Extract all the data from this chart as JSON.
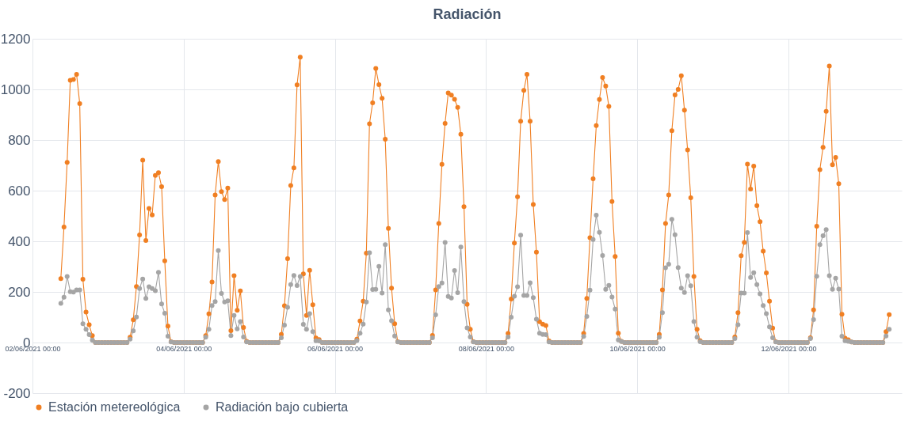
{
  "chart_data": {
    "type": "line",
    "title": "Radiación",
    "x": [
      "2021-06-02T09:00",
      "2021-06-02T10:00",
      "2021-06-02T11:00",
      "2021-06-02T12:00",
      "2021-06-02T13:00",
      "2021-06-02T14:00",
      "2021-06-02T15:00",
      "2021-06-02T16:00",
      "2021-06-02T17:00",
      "2021-06-02T18:00",
      "2021-06-02T19:00",
      "2021-06-02T20:00",
      "2021-06-02T21:00",
      "2021-06-02T22:00",
      "2021-06-02T23:00",
      "2021-06-03T00:00",
      "2021-06-03T01:00",
      "2021-06-03T02:00",
      "2021-06-03T03:00",
      "2021-06-03T04:00",
      "2021-06-03T05:00",
      "2021-06-03T06:00",
      "2021-06-03T07:00",
      "2021-06-03T08:00",
      "2021-06-03T09:00",
      "2021-06-03T10:00",
      "2021-06-03T11:00",
      "2021-06-03T12:00",
      "2021-06-03T13:00",
      "2021-06-03T14:00",
      "2021-06-03T15:00",
      "2021-06-03T16:00",
      "2021-06-03T17:00",
      "2021-06-03T18:00",
      "2021-06-03T19:00",
      "2021-06-03T20:00",
      "2021-06-03T21:00",
      "2021-06-03T22:00",
      "2021-06-03T23:00",
      "2021-06-04T00:00",
      "2021-06-04T01:00",
      "2021-06-04T02:00",
      "2021-06-04T03:00",
      "2021-06-04T04:00",
      "2021-06-04T05:00",
      "2021-06-04T06:00",
      "2021-06-04T07:00",
      "2021-06-04T08:00",
      "2021-06-04T09:00",
      "2021-06-04T10:00",
      "2021-06-04T11:00",
      "2021-06-04T12:00",
      "2021-06-04T13:00",
      "2021-06-04T14:00",
      "2021-06-04T15:00",
      "2021-06-04T16:00",
      "2021-06-04T17:00",
      "2021-06-04T18:00",
      "2021-06-04T19:00",
      "2021-06-04T20:00",
      "2021-06-04T21:00",
      "2021-06-04T22:00",
      "2021-06-04T23:00",
      "2021-06-05T00:00",
      "2021-06-05T01:00",
      "2021-06-05T02:00",
      "2021-06-05T03:00",
      "2021-06-05T04:00",
      "2021-06-05T05:00",
      "2021-06-05T06:00",
      "2021-06-05T07:00",
      "2021-06-05T08:00",
      "2021-06-05T09:00",
      "2021-06-05T10:00",
      "2021-06-05T11:00",
      "2021-06-05T12:00",
      "2021-06-05T13:00",
      "2021-06-05T14:00",
      "2021-06-05T15:00",
      "2021-06-05T16:00",
      "2021-06-05T17:00",
      "2021-06-05T18:00",
      "2021-06-05T19:00",
      "2021-06-05T20:00",
      "2021-06-05T21:00",
      "2021-06-05T22:00",
      "2021-06-05T23:00",
      "2021-06-06T00:00",
      "2021-06-06T01:00",
      "2021-06-06T02:00",
      "2021-06-06T03:00",
      "2021-06-06T04:00",
      "2021-06-06T05:00",
      "2021-06-06T06:00",
      "2021-06-06T07:00",
      "2021-06-06T08:00",
      "2021-06-06T09:00",
      "2021-06-06T10:00",
      "2021-06-06T11:00",
      "2021-06-06T12:00",
      "2021-06-06T13:00",
      "2021-06-06T14:00",
      "2021-06-06T15:00",
      "2021-06-06T16:00",
      "2021-06-06T17:00",
      "2021-06-06T18:00",
      "2021-06-06T19:00",
      "2021-06-06T20:00",
      "2021-06-06T21:00",
      "2021-06-06T22:00",
      "2021-06-06T23:00",
      "2021-06-07T00:00",
      "2021-06-07T01:00",
      "2021-06-07T02:00",
      "2021-06-07T03:00",
      "2021-06-07T04:00",
      "2021-06-07T05:00",
      "2021-06-07T06:00",
      "2021-06-07T07:00",
      "2021-06-07T08:00",
      "2021-06-07T09:00",
      "2021-06-07T10:00",
      "2021-06-07T11:00",
      "2021-06-07T12:00",
      "2021-06-07T13:00",
      "2021-06-07T14:00",
      "2021-06-07T15:00",
      "2021-06-07T16:00",
      "2021-06-07T17:00",
      "2021-06-07T18:00",
      "2021-06-07T19:00",
      "2021-06-07T20:00",
      "2021-06-07T21:00",
      "2021-06-07T22:00",
      "2021-06-07T23:00",
      "2021-06-08T00:00",
      "2021-06-08T01:00",
      "2021-06-08T02:00",
      "2021-06-08T03:00",
      "2021-06-08T04:00",
      "2021-06-08T05:00",
      "2021-06-08T06:00",
      "2021-06-08T07:00",
      "2021-06-08T08:00",
      "2021-06-08T09:00",
      "2021-06-08T10:00",
      "2021-06-08T11:00",
      "2021-06-08T12:00",
      "2021-06-08T13:00",
      "2021-06-08T14:00",
      "2021-06-08T15:00",
      "2021-06-08T16:00",
      "2021-06-08T17:00",
      "2021-06-08T18:00",
      "2021-06-08T19:00",
      "2021-06-08T20:00",
      "2021-06-08T21:00",
      "2021-06-08T22:00",
      "2021-06-08T23:00",
      "2021-06-09T00:00",
      "2021-06-09T01:00",
      "2021-06-09T02:00",
      "2021-06-09T03:00",
      "2021-06-09T04:00",
      "2021-06-09T05:00",
      "2021-06-09T06:00",
      "2021-06-09T07:00",
      "2021-06-09T08:00",
      "2021-06-09T09:00",
      "2021-06-09T10:00",
      "2021-06-09T11:00",
      "2021-06-09T12:00",
      "2021-06-09T13:00",
      "2021-06-09T14:00",
      "2021-06-09T15:00",
      "2021-06-09T16:00",
      "2021-06-09T17:00",
      "2021-06-09T18:00",
      "2021-06-09T19:00",
      "2021-06-09T20:00",
      "2021-06-09T21:00",
      "2021-06-09T22:00",
      "2021-06-09T23:00",
      "2021-06-10T00:00",
      "2021-06-10T01:00",
      "2021-06-10T02:00",
      "2021-06-10T03:00",
      "2021-06-10T04:00",
      "2021-06-10T05:00",
      "2021-06-10T06:00",
      "2021-06-10T07:00",
      "2021-06-10T08:00",
      "2021-06-10T09:00",
      "2021-06-10T10:00",
      "2021-06-10T11:00",
      "2021-06-10T12:00",
      "2021-06-10T13:00",
      "2021-06-10T14:00",
      "2021-06-10T15:00",
      "2021-06-10T16:00",
      "2021-06-10T17:00",
      "2021-06-10T18:00",
      "2021-06-10T19:00",
      "2021-06-10T20:00",
      "2021-06-10T21:00",
      "2021-06-10T22:00",
      "2021-06-10T23:00",
      "2021-06-11T00:00",
      "2021-06-11T01:00",
      "2021-06-11T02:00",
      "2021-06-11T03:00",
      "2021-06-11T04:00",
      "2021-06-11T05:00",
      "2021-06-11T06:00",
      "2021-06-11T07:00",
      "2021-06-11T08:00",
      "2021-06-11T09:00",
      "2021-06-11T10:00",
      "2021-06-11T11:00",
      "2021-06-11T12:00",
      "2021-06-11T13:00",
      "2021-06-11T14:00",
      "2021-06-11T15:00",
      "2021-06-11T16:00",
      "2021-06-11T17:00",
      "2021-06-11T18:00",
      "2021-06-11T19:00",
      "2021-06-11T20:00",
      "2021-06-11T21:00",
      "2021-06-11T22:00",
      "2021-06-11T23:00",
      "2021-06-12T00:00",
      "2021-06-12T01:00",
      "2021-06-12T02:00",
      "2021-06-12T03:00",
      "2021-06-12T04:00",
      "2021-06-12T05:00",
      "2021-06-12T06:00",
      "2021-06-12T07:00",
      "2021-06-12T08:00",
      "2021-06-12T09:00",
      "2021-06-12T10:00",
      "2021-06-12T11:00",
      "2021-06-12T12:00",
      "2021-06-12T13:00",
      "2021-06-12T14:00",
      "2021-06-12T15:00",
      "2021-06-12T16:00",
      "2021-06-12T17:00",
      "2021-06-12T18:00",
      "2021-06-12T19:00",
      "2021-06-12T20:00",
      "2021-06-12T21:00",
      "2021-06-12T22:00",
      "2021-06-12T23:00",
      "2021-06-13T00:00",
      "2021-06-13T01:00",
      "2021-06-13T02:00",
      "2021-06-13T03:00",
      "2021-06-13T04:00",
      "2021-06-13T05:00",
      "2021-06-13T06:00",
      "2021-06-13T07:00",
      "2021-06-13T08:00"
    ],
    "series": [
      {
        "name": "Estación metereológica",
        "color": "#f07f22",
        "values": [
          252,
          456,
          712,
          1036,
          1039,
          1059,
          944,
          250,
          120,
          70,
          27,
          0,
          0,
          0,
          0,
          0,
          0,
          0,
          0,
          0,
          0,
          0,
          21,
          90,
          221,
          425,
          720,
          403,
          530,
          504,
          660,
          671,
          616,
          323,
          65,
          3,
          0,
          0,
          0,
          0,
          0,
          0,
          0,
          0,
          0,
          0,
          27,
          113,
          239,
          583,
          715,
          596,
          565,
          610,
          47,
          264,
          127,
          204,
          59,
          5,
          0,
          0,
          0,
          0,
          0,
          0,
          0,
          0,
          0,
          0,
          32,
          145,
          331,
          620,
          690,
          1018,
          1127,
          271,
          107,
          285,
          149,
          18,
          12,
          0,
          0,
          0,
          0,
          0,
          0,
          0,
          0,
          0,
          0,
          0,
          13,
          85,
          163,
          353,
          864,
          947,
          1083,
          1019,
          965,
          803,
          451,
          215,
          74,
          3,
          0,
          0,
          0,
          0,
          0,
          0,
          0,
          0,
          0,
          0,
          28,
          208,
          470,
          704,
          866,
          986,
          977,
          961,
          929,
          823,
          537,
          151,
          52,
          3,
          0,
          0,
          0,
          0,
          0,
          0,
          0,
          0,
          0,
          0,
          36,
          172,
          393,
          576,
          874,
          996,
          1059,
          874,
          545,
          357,
          82,
          73,
          67,
          6,
          0,
          0,
          0,
          0,
          0,
          0,
          0,
          0,
          0,
          0,
          36,
          174,
          414,
          647,
          857,
          960,
          1047,
          1013,
          933,
          557,
          340,
          37,
          5,
          0,
          0,
          0,
          0,
          0,
          0,
          0,
          0,
          0,
          0,
          0,
          32,
          208,
          470,
          583,
          837,
          978,
          1000,
          1054,
          918,
          761,
          572,
          261,
          52,
          7,
          0,
          0,
          0,
          0,
          0,
          0,
          0,
          0,
          0,
          0,
          22,
          118,
          343,
          395,
          705,
          606,
          697,
          541,
          477,
          361,
          275,
          163,
          57,
          3,
          0,
          0,
          0,
          0,
          0,
          0,
          0,
          0,
          0,
          0,
          19,
          129,
          459,
          683,
          771,
          913,
          1092,
          702,
          731,
          627,
          112,
          17,
          11,
          2,
          0,
          0,
          0,
          0,
          0,
          0,
          0,
          0,
          0,
          0,
          43,
          110
        ]
      },
      {
        "name": "Radiación bajo cubierta",
        "color": "#a5a5a5",
        "values": [
          155,
          179,
          261,
          201,
          199,
          208,
          208,
          74,
          52,
          31,
          9,
          0,
          0,
          0,
          0,
          0,
          0,
          0,
          0,
          0,
          0,
          0,
          13,
          46,
          101,
          213,
          251,
          174,
          220,
          213,
          205,
          277,
          152,
          116,
          25,
          2,
          0,
          0,
          0,
          0,
          0,
          0,
          0,
          0,
          0,
          0,
          21,
          52,
          146,
          162,
          363,
          194,
          160,
          165,
          27,
          107,
          54,
          83,
          22,
          2,
          0,
          0,
          0,
          0,
          0,
          0,
          0,
          0,
          0,
          0,
          19,
          69,
          139,
          229,
          265,
          225,
          261,
          72,
          52,
          114,
          43,
          7,
          6,
          0,
          0,
          0,
          0,
          0,
          0,
          0,
          0,
          0,
          0,
          0,
          8,
          37,
          73,
          160,
          355,
          209,
          210,
          301,
          195,
          387,
          129,
          86,
          26,
          2,
          0,
          0,
          0,
          0,
          0,
          0,
          0,
          0,
          0,
          0,
          19,
          109,
          221,
          235,
          395,
          182,
          176,
          284,
          197,
          377,
          162,
          58,
          22,
          2,
          0,
          0,
          0,
          0,
          0,
          0,
          0,
          0,
          0,
          0,
          22,
          100,
          183,
          220,
          424,
          186,
          186,
          236,
          177,
          92,
          37,
          32,
          31,
          2,
          0,
          0,
          0,
          0,
          0,
          0,
          0,
          0,
          0,
          0,
          24,
          103,
          207,
          407,
          503,
          435,
          344,
          210,
          226,
          180,
          132,
          10,
          4,
          0,
          0,
          0,
          0,
          0,
          0,
          0,
          0,
          0,
          0,
          0,
          21,
          118,
          295,
          309,
          487,
          426,
          296,
          215,
          198,
          264,
          224,
          83,
          21,
          3,
          0,
          0,
          0,
          0,
          0,
          0,
          0,
          0,
          0,
          0,
          16,
          70,
          195,
          195,
          434,
          257,
          276,
          229,
          192,
          146,
          114,
          62,
          19,
          2,
          0,
          0,
          0,
          0,
          0,
          0,
          0,
          0,
          0,
          0,
          16,
          91,
          262,
          387,
          422,
          446,
          264,
          210,
          254,
          211,
          25,
          7,
          5,
          2,
          0,
          0,
          0,
          0,
          0,
          0,
          0,
          0,
          0,
          0,
          26,
          52
        ]
      }
    ],
    "xlim": [
      "2021-06-02T00:00",
      "2021-06-13T12:00"
    ],
    "xticks": [
      {
        "value": "2021-06-02T00:00",
        "label": "02/06/2021 00:00"
      },
      {
        "value": "2021-06-04T00:00",
        "label": "04/06/2021 00:00"
      },
      {
        "value": "2021-06-06T00:00",
        "label": "06/06/2021 00:00"
      },
      {
        "value": "2021-06-08T00:00",
        "label": "08/06/2021 00:00"
      },
      {
        "value": "2021-06-10T00:00",
        "label": "10/06/2021 00:00"
      },
      {
        "value": "2021-06-12T00:00",
        "label": "12/06/2021 00:00"
      }
    ],
    "ylim": [
      -200,
      1200
    ],
    "yticks": [
      -200,
      0,
      200,
      400,
      600,
      800,
      1000,
      1200
    ],
    "grid": true,
    "legend": "bottom",
    "marker": "circle",
    "line_style": "solid"
  }
}
